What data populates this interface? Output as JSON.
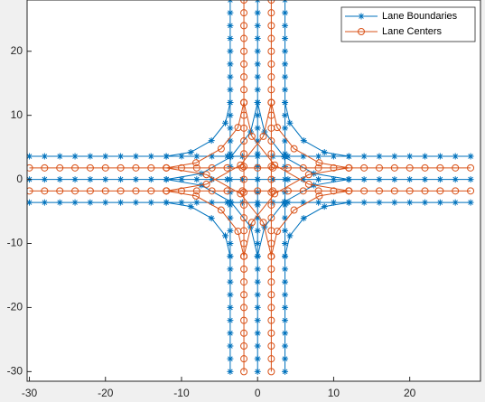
{
  "chart_data": {
    "type": "line",
    "xlim": [
      -30.3,
      29.3
    ],
    "ylim": [
      -31.5,
      28
    ],
    "xticks": [
      -30,
      -20,
      -10,
      0,
      10,
      20
    ],
    "yticks": [
      -30,
      -20,
      -10,
      0,
      10,
      20
    ],
    "grid": false,
    "legend": "top-right",
    "series": [
      {
        "name": "Lane Boundaries",
        "color": "#0072bd",
        "marker": "*",
        "x": [
          -30,
          -28,
          -26,
          -24,
          -22,
          -20,
          -18,
          -16,
          -14,
          -12,
          -10,
          -8,
          -6,
          -4,
          -2,
          0,
          2,
          4,
          6,
          8,
          10,
          12,
          14,
          16,
          18,
          20,
          22,
          24,
          26,
          28,
          null,
          -30,
          -28,
          -26,
          -24,
          -22,
          -20,
          -18,
          -16,
          -14,
          -12,
          -10,
          -8,
          -6,
          -4,
          -2,
          0,
          2,
          4,
          6,
          8,
          10,
          12,
          14,
          16,
          18,
          20,
          22,
          24,
          26,
          28,
          null,
          -30,
          -28,
          -26,
          -24,
          -22,
          -20,
          -18,
          -16,
          -14,
          -12,
          -10,
          -8,
          -6,
          -4,
          -2,
          0,
          2,
          4,
          6,
          8,
          10,
          12,
          14,
          16,
          18,
          20,
          22,
          24,
          26,
          28,
          null,
          -3.6,
          -3.6,
          -3.6,
          -3.6,
          -3.6,
          -3.6,
          -3.6,
          -3.6,
          -3.6,
          -3.6,
          -3.6,
          -3.6,
          -3.6,
          -3.6,
          -3.6,
          -3.6,
          -3.6,
          -3.6,
          -3.6,
          -3.6,
          -3.6,
          -3.6,
          -3.6,
          -3.6,
          -3.6,
          -3.6,
          -3.6,
          -3.6,
          -3.6,
          -3.6,
          null,
          0,
          0,
          0,
          0,
          0,
          0,
          0,
          0,
          0,
          0,
          0,
          0,
          0,
          0,
          0,
          0,
          0,
          0,
          0,
          0,
          0,
          0,
          0,
          0,
          0,
          0,
          0,
          0,
          0,
          0,
          null,
          3.6,
          3.6,
          3.6,
          3.6,
          3.6,
          3.6,
          3.6,
          3.6,
          3.6,
          3.6,
          3.6,
          3.6,
          3.6,
          3.6,
          3.6,
          3.6,
          3.6,
          3.6,
          3.6,
          3.6,
          3.6,
          3.6,
          3.6,
          3.6,
          3.6,
          3.6,
          3.6,
          3.6,
          3.6,
          3.6,
          null,
          -12,
          -8.79,
          -6.06,
          -4.24,
          -3.6,
          null,
          12,
          8.79,
          6.06,
          4.24,
          3.6,
          null,
          -12,
          -8.79,
          -6.06,
          -4.24,
          -3.6,
          null,
          12,
          8.79,
          6.06,
          4.24,
          3.6,
          null,
          -12,
          -7.41,
          -3.51,
          -0.91,
          0,
          null,
          12,
          7.41,
          3.51,
          0.91,
          0,
          null,
          -12,
          -7.41,
          -3.51,
          -0.91,
          0,
          null,
          12,
          7.41,
          3.51,
          0.91,
          0
        ],
        "y": [
          3.6,
          3.6,
          3.6,
          3.6,
          3.6,
          3.6,
          3.6,
          3.6,
          3.6,
          3.6,
          3.6,
          3.6,
          3.6,
          3.6,
          3.6,
          3.6,
          3.6,
          3.6,
          3.6,
          3.6,
          3.6,
          3.6,
          3.6,
          3.6,
          3.6,
          3.6,
          3.6,
          3.6,
          3.6,
          3.6,
          null,
          0,
          0,
          0,
          0,
          0,
          0,
          0,
          0,
          0,
          0,
          0,
          0,
          0,
          0,
          0,
          0,
          0,
          0,
          0,
          0,
          0,
          0,
          0,
          0,
          0,
          0,
          0,
          0,
          0,
          0,
          null,
          -3.6,
          -3.6,
          -3.6,
          -3.6,
          -3.6,
          -3.6,
          -3.6,
          -3.6,
          -3.6,
          -3.6,
          -3.6,
          -3.6,
          -3.6,
          -3.6,
          -3.6,
          -3.6,
          -3.6,
          -3.6,
          -3.6,
          -3.6,
          -3.6,
          -3.6,
          -3.6,
          -3.6,
          -3.6,
          -3.6,
          -3.6,
          -3.6,
          -3.6,
          -3.6,
          null,
          -30,
          -28,
          -26,
          -24,
          -22,
          -20,
          -18,
          -16,
          -14,
          -12,
          -10,
          -8,
          -6,
          -4,
          -2,
          0,
          2,
          4,
          6,
          8,
          10,
          12,
          14,
          16,
          18,
          20,
          22,
          24,
          26,
          28,
          null,
          -30,
          -28,
          -26,
          -24,
          -22,
          -20,
          -18,
          -16,
          -14,
          -12,
          -10,
          -8,
          -6,
          -4,
          -2,
          0,
          2,
          4,
          6,
          8,
          10,
          12,
          14,
          16,
          18,
          20,
          22,
          24,
          26,
          28,
          null,
          -30,
          -28,
          -26,
          -24,
          -22,
          -20,
          -18,
          -16,
          -14,
          -12,
          -10,
          -8,
          -6,
          -4,
          -2,
          0,
          2,
          4,
          6,
          8,
          10,
          12,
          14,
          16,
          18,
          20,
          22,
          24,
          26,
          28,
          null,
          3.6,
          4.24,
          6.06,
          8.79,
          12,
          null,
          3.6,
          4.24,
          6.06,
          8.79,
          12,
          null,
          -3.6,
          -4.24,
          -6.06,
          -8.79,
          -12,
          null,
          -3.6,
          -4.24,
          -6.06,
          -8.79,
          -12,
          null,
          0,
          0.91,
          3.51,
          7.41,
          12,
          null,
          0,
          0.91,
          3.51,
          7.41,
          12,
          null,
          0,
          -0.91,
          -3.51,
          -7.41,
          -12,
          null,
          0,
          -0.91,
          -3.51,
          -7.41,
          -12
        ]
      },
      {
        "name": "Lane Centers",
        "color": "#d95319",
        "marker": "o",
        "x": [
          -30,
          -28,
          -26,
          -24,
          -22,
          -20,
          -18,
          -16,
          -14,
          -12,
          -10,
          -8,
          -6,
          -4,
          -2,
          0,
          2,
          4,
          6,
          8,
          10,
          12,
          14,
          16,
          18,
          20,
          22,
          24,
          26,
          28,
          null,
          -30,
          -28,
          -26,
          -24,
          -22,
          -20,
          -18,
          -16,
          -14,
          -12,
          -10,
          -8,
          -6,
          -4,
          -2,
          0,
          2,
          4,
          6,
          8,
          10,
          12,
          14,
          16,
          18,
          20,
          22,
          24,
          26,
          28,
          null,
          -1.8,
          -1.8,
          -1.8,
          -1.8,
          -1.8,
          -1.8,
          -1.8,
          -1.8,
          -1.8,
          -1.8,
          -1.8,
          -1.8,
          -1.8,
          -1.8,
          -1.8,
          -1.8,
          -1.8,
          -1.8,
          -1.8,
          -1.8,
          -1.8,
          -1.8,
          -1.8,
          -1.8,
          -1.8,
          -1.8,
          -1.8,
          -1.8,
          -1.8,
          -1.8,
          null,
          1.8,
          1.8,
          1.8,
          1.8,
          1.8,
          1.8,
          1.8,
          1.8,
          1.8,
          1.8,
          1.8,
          1.8,
          1.8,
          1.8,
          1.8,
          1.8,
          1.8,
          1.8,
          1.8,
          1.8,
          1.8,
          1.8,
          1.8,
          1.8,
          1.8,
          1.8,
          1.8,
          1.8,
          1.8,
          1.8,
          null,
          -12,
          -8.1,
          -4.79,
          -2.58,
          -1.8,
          null,
          12,
          8.1,
          4.79,
          2.58,
          1.8,
          null,
          -12,
          -8.1,
          -4.79,
          -2.58,
          -1.8,
          null,
          12,
          8.1,
          4.79,
          2.58,
          1.8,
          null,
          -12,
          -6.72,
          -2.24,
          0.75,
          1.8,
          null,
          12,
          6.72,
          2.24,
          -0.75,
          -1.8,
          null,
          -12,
          -6.72,
          -2.24,
          0.75,
          1.8,
          null,
          12,
          6.72,
          2.24,
          -0.75,
          -1.8
        ],
        "y": [
          1.8,
          1.8,
          1.8,
          1.8,
          1.8,
          1.8,
          1.8,
          1.8,
          1.8,
          1.8,
          1.8,
          1.8,
          1.8,
          1.8,
          1.8,
          1.8,
          1.8,
          1.8,
          1.8,
          1.8,
          1.8,
          1.8,
          1.8,
          1.8,
          1.8,
          1.8,
          1.8,
          1.8,
          1.8,
          1.8,
          null,
          -1.8,
          -1.8,
          -1.8,
          -1.8,
          -1.8,
          -1.8,
          -1.8,
          -1.8,
          -1.8,
          -1.8,
          -1.8,
          -1.8,
          -1.8,
          -1.8,
          -1.8,
          -1.8,
          -1.8,
          -1.8,
          -1.8,
          -1.8,
          -1.8,
          -1.8,
          -1.8,
          -1.8,
          -1.8,
          -1.8,
          -1.8,
          -1.8,
          -1.8,
          -1.8,
          null,
          -30,
          -28,
          -26,
          -24,
          -22,
          -20,
          -18,
          -16,
          -14,
          -12,
          -10,
          -8,
          -6,
          -4,
          -2,
          0,
          2,
          4,
          6,
          8,
          10,
          12,
          14,
          16,
          18,
          20,
          22,
          24,
          26,
          28,
          null,
          -30,
          -28,
          -26,
          -24,
          -22,
          -20,
          -18,
          -16,
          -14,
          -12,
          -10,
          -8,
          -6,
          -4,
          -2,
          0,
          2,
          4,
          6,
          8,
          10,
          12,
          14,
          16,
          18,
          20,
          22,
          24,
          26,
          28,
          null,
          1.8,
          2.58,
          4.79,
          8.1,
          12,
          null,
          1.8,
          2.58,
          4.79,
          8.1,
          12,
          null,
          -1.8,
          -2.58,
          -4.79,
          -8.1,
          -12,
          null,
          -1.8,
          -2.58,
          -4.79,
          -8.1,
          -12,
          null,
          -1.8,
          -0.75,
          2.24,
          6.72,
          12,
          null,
          -1.8,
          -0.75,
          2.24,
          6.72,
          12,
          null,
          1.8,
          0.75,
          -2.24,
          -6.72,
          -12,
          null,
          1.8,
          0.75,
          -2.24,
          -6.72,
          -12
        ]
      }
    ]
  }
}
